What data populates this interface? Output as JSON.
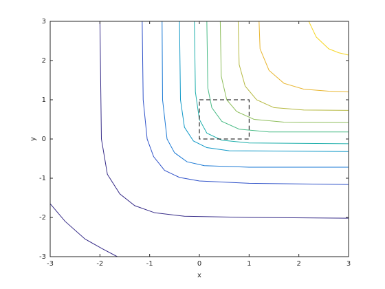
{
  "chart_data": {
    "type": "contour",
    "x_label": "x",
    "y_label": "y",
    "xlim": [
      -3,
      3
    ],
    "ylim": [
      -3,
      3
    ],
    "xticks": [
      -3,
      -2,
      -1,
      0,
      1,
      2,
      3
    ],
    "yticks": [
      -3,
      -2,
      -1,
      0,
      1,
      2,
      3
    ],
    "series": [
      {
        "color": "#352a87",
        "x": [
          -2.0,
          -1.97,
          -1.85,
          -1.6,
          -1.3,
          -0.9,
          -0.3,
          1,
          3
        ],
        "y": [
          3,
          0,
          -0.9,
          -1.4,
          -1.7,
          -1.88,
          -1.97,
          -2.0,
          -2.02
        ]
      },
      {
        "color": "#352a87",
        "x": [
          -3,
          -2.7,
          -2.3,
          -1.95,
          -1.65
        ],
        "y": [
          -1.65,
          -2.1,
          -2.55,
          -2.8,
          -3
        ]
      },
      {
        "color": "#2d50c8",
        "x": [
          -1.15,
          -1.13,
          -1.05,
          -0.92,
          -0.7,
          -0.4,
          0,
          1,
          3
        ],
        "y": [
          3,
          1,
          0,
          -0.45,
          -0.8,
          -0.98,
          -1.07,
          -1.13,
          -1.16
        ]
      },
      {
        "color": "#1777d4",
        "x": [
          -0.75,
          -0.74,
          -0.65,
          -0.5,
          -0.25,
          0.1,
          1,
          3
        ],
        "y": [
          3,
          1,
          0,
          -0.35,
          -0.58,
          -0.68,
          -0.72,
          -0.72
        ]
      },
      {
        "color": "#0d97c6",
        "x": [
          -0.4,
          -0.38,
          -0.3,
          -0.12,
          0.15,
          0.6,
          3
        ],
        "y": [
          3,
          1,
          0.3,
          -0.05,
          -0.22,
          -0.3,
          -0.32
        ]
      },
      {
        "color": "#1caeaa",
        "x": [
          -0.1,
          -0.08,
          0,
          0.15,
          0.45,
          1,
          3
        ],
        "y": [
          3,
          1.2,
          0.5,
          0.15,
          -0.03,
          -0.1,
          -0.12
        ]
      },
      {
        "color": "#49bb86",
        "x": [
          0.15,
          0.17,
          0.25,
          0.45,
          0.8,
          1.4,
          3
        ],
        "y": [
          3,
          1.3,
          0.8,
          0.45,
          0.25,
          0.18,
          0.18
        ]
      },
      {
        "color": "#8dbd5a",
        "x": [
          0.42,
          0.44,
          0.55,
          0.75,
          1.1,
          1.7,
          3
        ],
        "y": [
          3,
          1.6,
          1.0,
          0.7,
          0.5,
          0.43,
          0.42
        ]
      },
      {
        "color": "#b5b83f",
        "x": [
          0.78,
          0.8,
          0.92,
          1.15,
          1.5,
          2.1,
          3
        ],
        "y": [
          3,
          1.9,
          1.35,
          1.0,
          0.8,
          0.74,
          0.73
        ]
      },
      {
        "color": "#e8b52d",
        "x": [
          1.2,
          1.22,
          1.4,
          1.7,
          2.1,
          2.6,
          3
        ],
        "y": [
          3,
          2.3,
          1.75,
          1.42,
          1.27,
          1.22,
          1.2
        ]
      },
      {
        "color": "#f6d625",
        "x": [
          2.2,
          2.35,
          2.6,
          2.8,
          3
        ],
        "y": [
          3,
          2.6,
          2.3,
          2.2,
          2.14
        ]
      }
    ],
    "rectangle": {
      "x": [
        0,
        1
      ],
      "y": [
        0,
        1
      ],
      "color": "#000000"
    }
  }
}
